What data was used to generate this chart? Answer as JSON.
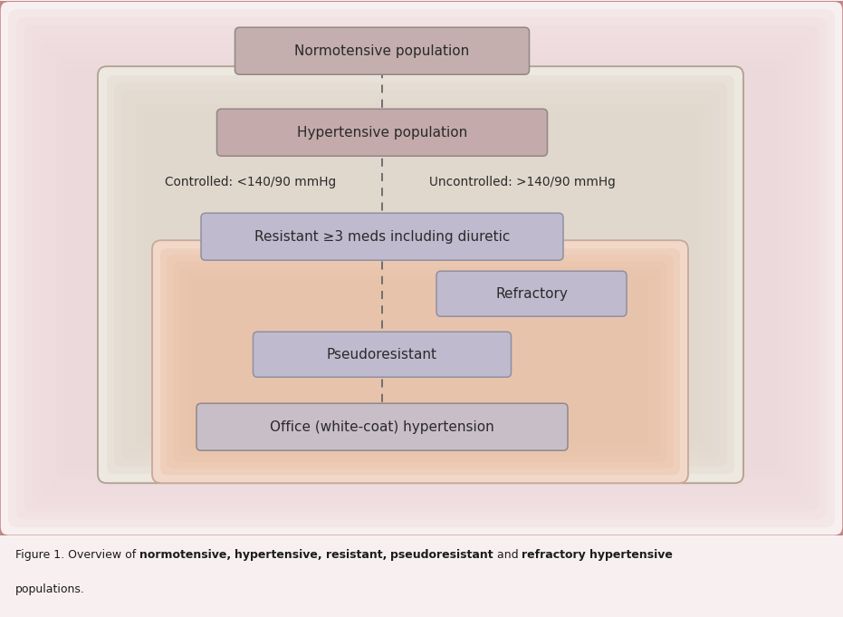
{
  "fig_width": 9.31,
  "fig_height": 6.81,
  "bg_figure": "#f8f0f0",
  "bg_outer_border": "#c08888",
  "bg_hypertensive_rect": "#ede8e0",
  "bg_hypertensive_border": "#b0a090",
  "bg_pseudoresistant_rect": "#f2d8c8",
  "bg_pseudoresistant_border": "#c8a898",
  "box_fill_normotensive": "#c4aeae",
  "box_fill_hypertensive": "#c4aaaa",
  "box_fill_resistant": "#c0bace",
  "box_fill_refractory": "#c0bace",
  "box_fill_pseudoresistant": "#c0bace",
  "box_fill_office": "#c8bec8",
  "box_edge_gray": "#908888",
  "box_edge_purple": "#9090a0",
  "text_color": "#2a2a2a",
  "dashed_line_color": "#666666",
  "label_normotensive": "Normotensive population",
  "label_hypertensive": "Hypertensive population",
  "label_resistant": "Resistant ≥3 meds including diuretic",
  "label_refractory": "Refractory",
  "label_pseudoresistant": "Pseudoresistant",
  "label_office": "Office (white-coat) hypertension",
  "label_controlled": "Controlled: <140/90 mmHg",
  "label_uncontrolled": "Uncontrolled: >140/90 mmHg",
  "caption_prefix": "Figure 1. Overview of ",
  "caption_bold": [
    "normotensive,",
    " hypertensive,",
    " resistant,",
    " pseudoresistant",
    " and ",
    "refractory",
    " hypertensive"
  ],
  "caption_bold_flags": [
    true,
    true,
    true,
    true,
    false,
    true,
    true
  ],
  "caption_line2": "populations."
}
